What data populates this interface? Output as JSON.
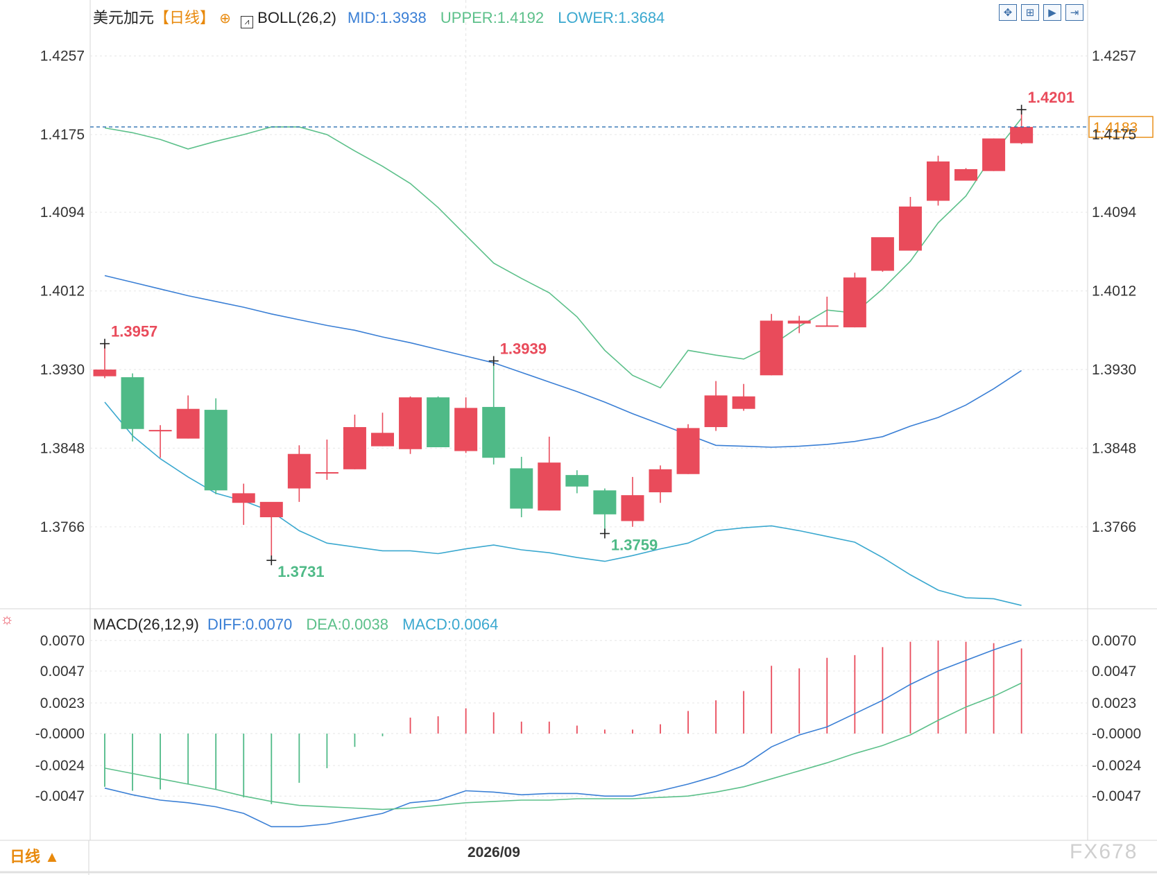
{
  "header": {
    "symbol": "美元加元",
    "period_tag": "【日线】",
    "boll_label": "BOLL(26,2)",
    "mid_label": "MID:1.3938",
    "upper_label": "UPPER:1.4192",
    "lower_label": "LOWER:1.3684"
  },
  "macd_header": {
    "label": "MACD(26,12,9)",
    "diff_label": "DIFF:0.0070",
    "dea_label": "DEA:0.0038",
    "macd_label": "MACD:0.0064"
  },
  "footer": {
    "period_button": "日线 ▲",
    "x_label": "2026/09",
    "watermark": "FX678"
  },
  "toolbar": {
    "icons": [
      "move-icon",
      "zoom-in-icon",
      "play-icon",
      "step-forward-icon"
    ]
  },
  "colors": {
    "up": "#e94b5b",
    "down": "#4fba87",
    "mid": "#3a7fd5",
    "upper": "#5cc08a",
    "lower": "#3aa8cf",
    "diff": "#3a7fd5",
    "dea": "#5cc08a",
    "axis_text": "#333333",
    "period": "#e8890c"
  },
  "chart_data": [
    {
      "type": "candlestick",
      "title": "美元加元【日线】",
      "y_ticks": [
        "1.4257",
        "1.4175",
        "1.4094",
        "1.4012",
        "1.3930",
        "1.3848",
        "1.3766"
      ],
      "ylim": [
        1.3682,
        1.4285
      ],
      "last_price": 1.4183,
      "last_price_label": "1.4183",
      "annotations": [
        {
          "index": 0,
          "value": 1.3957,
          "label": "1.3957",
          "kind": "high"
        },
        {
          "index": 6,
          "value": 1.3731,
          "label": "1.3731",
          "kind": "low"
        },
        {
          "index": 14,
          "value": 1.3939,
          "label": "1.3939",
          "kind": "high"
        },
        {
          "index": 18,
          "value": 1.3759,
          "label": "1.3759",
          "kind": "low"
        },
        {
          "index": 33,
          "value": 1.4201,
          "label": "1.4201",
          "kind": "high"
        }
      ],
      "candles": [
        {
          "o": 1.3923,
          "h": 1.3957,
          "l": 1.3921,
          "c": 1.393
        },
        {
          "o": 1.3922,
          "h": 1.3926,
          "l": 1.3855,
          "c": 1.3868
        },
        {
          "o": 1.3866,
          "h": 1.3872,
          "l": 1.3838,
          "c": 1.3867
        },
        {
          "o": 1.3858,
          "h": 1.3903,
          "l": 1.3858,
          "c": 1.3889
        },
        {
          "o": 1.3888,
          "h": 1.39,
          "l": 1.38,
          "c": 1.3804
        },
        {
          "o": 1.3791,
          "h": 1.3811,
          "l": 1.3768,
          "c": 1.3801
        },
        {
          "o": 1.3776,
          "h": 1.379,
          "l": 1.3731,
          "c": 1.3792
        },
        {
          "o": 1.3806,
          "h": 1.3851,
          "l": 1.3792,
          "c": 1.3842
        },
        {
          "o": 1.3823,
          "h": 1.3857,
          "l": 1.3815,
          "c": 1.3823
        },
        {
          "o": 1.3826,
          "h": 1.3883,
          "l": 1.3826,
          "c": 1.387
        },
        {
          "o": 1.385,
          "h": 1.3885,
          "l": 1.385,
          "c": 1.3864
        },
        {
          "o": 1.3847,
          "h": 1.3902,
          "l": 1.3842,
          "c": 1.3901
        },
        {
          "o": 1.3901,
          "h": 1.3902,
          "l": 1.3849,
          "c": 1.3849
        },
        {
          "o": 1.3845,
          "h": 1.3901,
          "l": 1.3843,
          "c": 1.389
        },
        {
          "o": 1.3891,
          "h": 1.3939,
          "l": 1.3831,
          "c": 1.3838
        },
        {
          "o": 1.3827,
          "h": 1.3839,
          "l": 1.3776,
          "c": 1.3785
        },
        {
          "o": 1.3783,
          "h": 1.386,
          "l": 1.3783,
          "c": 1.3833
        },
        {
          "o": 1.382,
          "h": 1.3825,
          "l": 1.3801,
          "c": 1.3808
        },
        {
          "o": 1.3804,
          "h": 1.3806,
          "l": 1.3759,
          "c": 1.3779
        },
        {
          "o": 1.3772,
          "h": 1.3818,
          "l": 1.3766,
          "c": 1.3799
        },
        {
          "o": 1.3802,
          "h": 1.383,
          "l": 1.3791,
          "c": 1.3826
        },
        {
          "o": 1.3821,
          "h": 1.3873,
          "l": 1.3821,
          "c": 1.3869
        },
        {
          "o": 1.387,
          "h": 1.3918,
          "l": 1.3866,
          "c": 1.3903
        },
        {
          "o": 1.3889,
          "h": 1.3915,
          "l": 1.3887,
          "c": 1.3902
        },
        {
          "o": 1.3924,
          "h": 1.3988,
          "l": 1.3924,
          "c": 1.3981
        },
        {
          "o": 1.3978,
          "h": 1.3986,
          "l": 1.3968,
          "c": 1.3981
        },
        {
          "o": 1.3976,
          "h": 1.4006,
          "l": 1.3975,
          "c": 1.3976
        },
        {
          "o": 1.3974,
          "h": 1.4031,
          "l": 1.3974,
          "c": 1.4026
        },
        {
          "o": 1.4033,
          "h": 1.4062,
          "l": 1.4032,
          "c": 1.4068
        },
        {
          "o": 1.4054,
          "h": 1.411,
          "l": 1.4054,
          "c": 1.41
        },
        {
          "o": 1.4106,
          "h": 1.4153,
          "l": 1.4101,
          "c": 1.4147
        },
        {
          "o": 1.4127,
          "h": 1.414,
          "l": 1.4127,
          "c": 1.4139
        },
        {
          "o": 1.4137,
          "h": 1.4171,
          "l": 1.4137,
          "c": 1.4171
        },
        {
          "o": 1.4166,
          "h": 1.4201,
          "l": 1.4165,
          "c": 1.4183
        }
      ],
      "boll_mid": [
        1.4028,
        1.4021,
        1.4014,
        1.4007,
        1.4001,
        1.3995,
        1.3988,
        1.3982,
        1.3976,
        1.3971,
        1.3964,
        1.3958,
        1.3951,
        1.3944,
        1.3937,
        1.3927,
        1.3917,
        1.3907,
        1.3896,
        1.3884,
        1.3873,
        1.3862,
        1.3851,
        1.385,
        1.3849,
        1.385,
        1.3852,
        1.3855,
        1.386,
        1.3871,
        1.388,
        1.3893,
        1.391,
        1.3929
      ],
      "boll_upper": [
        1.4182,
        1.4177,
        1.417,
        1.416,
        1.4168,
        1.4175,
        1.4183,
        1.4183,
        1.4175,
        1.4158,
        1.4142,
        1.4124,
        1.4099,
        1.407,
        1.4041,
        1.4025,
        1.401,
        1.3985,
        1.395,
        1.3924,
        1.3911,
        1.395,
        1.3945,
        1.3941,
        1.3955,
        1.3975,
        1.3992,
        1.3989,
        1.4014,
        1.4043,
        1.4083,
        1.4111,
        1.4155,
        1.4192
      ],
      "boll_lower": [
        1.3896,
        1.3861,
        1.3837,
        1.3818,
        1.3801,
        1.3793,
        1.3782,
        1.3762,
        1.3749,
        1.3745,
        1.3741,
        1.3741,
        1.3738,
        1.3743,
        1.3747,
        1.3742,
        1.3739,
        1.3734,
        1.373,
        1.3736,
        1.3743,
        1.3749,
        1.3762,
        1.3765,
        1.3767,
        1.3762,
        1.3756,
        1.375,
        1.3734,
        1.3716,
        1.37,
        1.3692,
        1.3691,
        1.3684
      ]
    },
    {
      "type": "macd",
      "title": "MACD(26,12,9)",
      "y_ticks": [
        "0.0070",
        "0.0047",
        "0.0023",
        "-0.0000",
        "-0.0024",
        "-0.0047"
      ],
      "ylim": [
        -0.0074,
        0.0073
      ],
      "x_tick_label": "2026/09",
      "x_tick_index": 13,
      "macd": [
        -0.004,
        -0.0043,
        -0.0042,
        -0.0038,
        -0.0042,
        -0.0048,
        -0.0053,
        -0.0037,
        -0.0026,
        -0.001,
        -0.0002,
        0.0012,
        0.0013,
        0.0019,
        0.0016,
        0.0009,
        0.0009,
        0.0006,
        0.0003,
        0.0003,
        0.0007,
        0.0017,
        0.0025,
        0.0032,
        0.0051,
        0.0049,
        0.0057,
        0.0059,
        0.0065,
        0.0069,
        0.007,
        0.0069,
        0.0068,
        0.0064
      ],
      "diff": [
        -0.0041,
        -0.0046,
        -0.005,
        -0.0052,
        -0.0055,
        -0.006,
        -0.007,
        -0.007,
        -0.0068,
        -0.0064,
        -0.006,
        -0.0052,
        -0.005,
        -0.0043,
        -0.0044,
        -0.0046,
        -0.0045,
        -0.0045,
        -0.0047,
        -0.0047,
        -0.0043,
        -0.0038,
        -0.0032,
        -0.0024,
        -0.001,
        -0.0001,
        0.0005,
        0.0015,
        0.0025,
        0.0037,
        0.0047,
        0.0055,
        0.0063,
        0.007
      ],
      "dea": [
        -0.0026,
        -0.003,
        -0.0034,
        -0.0038,
        -0.0042,
        -0.0047,
        -0.0051,
        -0.0054,
        -0.0055,
        -0.0056,
        -0.0057,
        -0.0056,
        -0.0054,
        -0.0052,
        -0.0051,
        -0.005,
        -0.005,
        -0.0049,
        -0.0049,
        -0.0049,
        -0.0048,
        -0.0047,
        -0.0044,
        -0.004,
        -0.0034,
        -0.0028,
        -0.0022,
        -0.0015,
        -0.0009,
        -0.0001,
        0.001,
        0.002,
        0.0028,
        0.0038
      ]
    }
  ]
}
